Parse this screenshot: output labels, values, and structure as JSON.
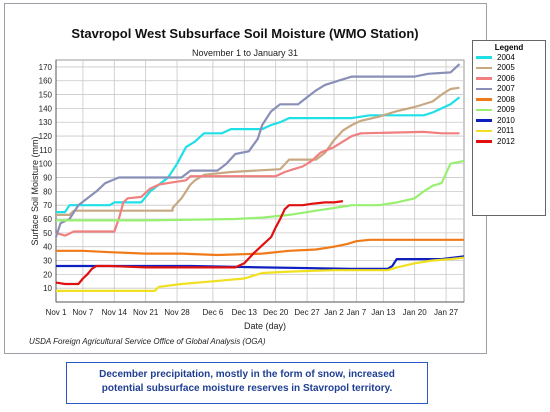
{
  "chart_data": {
    "type": "line",
    "title": "Stavropol West Subsurface Soil Moisture (WMO Station)",
    "subtitle": "November 1 to January 31",
    "xlabel": "Date (day)",
    "ylabel": "Surface Soil Moisture (mm)",
    "ylim": [
      0,
      175
    ],
    "xlim": [
      0,
      91
    ],
    "yticks": [
      10,
      20,
      30,
      40,
      50,
      60,
      70,
      80,
      90,
      100,
      110,
      120,
      130,
      140,
      150,
      160,
      170
    ],
    "xticks": [
      {
        "day": 0,
        "label": "Nov 1"
      },
      {
        "day": 6,
        "label": "Nov 7"
      },
      {
        "day": 13,
        "label": "Nov 14"
      },
      {
        "day": 20,
        "label": "Nov 21"
      },
      {
        "day": 27,
        "label": "Nov 28"
      },
      {
        "day": 35,
        "label": "Dec 6"
      },
      {
        "day": 42,
        "label": "Dec 13"
      },
      {
        "day": 49,
        "label": "Dec 20"
      },
      {
        "day": 56,
        "label": "Dec 27"
      },
      {
        "day": 62,
        "label": "Jan 2"
      },
      {
        "day": 67,
        "label": "Jan 7"
      },
      {
        "day": 73,
        "label": "Jan 13"
      },
      {
        "day": 80,
        "label": "Jan 20"
      },
      {
        "day": 87,
        "label": "Jan 27"
      }
    ],
    "grid": true,
    "legend_title": "Legend",
    "legend_position": "right",
    "series": [
      {
        "name": "2004",
        "color": "#1ee0e6",
        "points": [
          [
            0,
            65
          ],
          [
            2,
            65
          ],
          [
            3,
            70
          ],
          [
            12,
            70
          ],
          [
            13,
            72
          ],
          [
            19,
            72
          ],
          [
            21,
            80
          ],
          [
            23,
            85
          ],
          [
            25,
            90
          ],
          [
            27,
            100
          ],
          [
            29,
            112
          ],
          [
            31,
            116
          ],
          [
            33,
            122
          ],
          [
            37,
            122
          ],
          [
            39,
            125
          ],
          [
            46,
            125
          ],
          [
            48,
            128
          ],
          [
            50,
            130
          ],
          [
            52,
            133
          ],
          [
            66,
            133
          ],
          [
            70,
            135
          ],
          [
            82,
            135
          ],
          [
            84,
            137
          ],
          [
            86,
            140
          ],
          [
            88,
            143
          ],
          [
            90,
            148
          ]
        ]
      },
      {
        "name": "2005",
        "color": "#c8a882",
        "points": [
          [
            0,
            63
          ],
          [
            3,
            63
          ],
          [
            4,
            66
          ],
          [
            26,
            66
          ],
          [
            26,
            68
          ],
          [
            28,
            75
          ],
          [
            30,
            85
          ],
          [
            31,
            88
          ],
          [
            33,
            92
          ],
          [
            39,
            94
          ],
          [
            50,
            96
          ],
          [
            52,
            103
          ],
          [
            58,
            103
          ],
          [
            60,
            108
          ],
          [
            62,
            117
          ],
          [
            64,
            124
          ],
          [
            66,
            128
          ],
          [
            68,
            131
          ],
          [
            72,
            134
          ],
          [
            76,
            138
          ],
          [
            80,
            141
          ],
          [
            84,
            145
          ],
          [
            86,
            150
          ],
          [
            88,
            154
          ],
          [
            90,
            155
          ]
        ]
      },
      {
        "name": "2006",
        "color": "#f08080",
        "points": [
          [
            0,
            50
          ],
          [
            2,
            48
          ],
          [
            4,
            51
          ],
          [
            13,
            51
          ],
          [
            14,
            60
          ],
          [
            15,
            72
          ],
          [
            16,
            75
          ],
          [
            19,
            76
          ],
          [
            21,
            82
          ],
          [
            23,
            85
          ],
          [
            25,
            86
          ],
          [
            29,
            88
          ],
          [
            30,
            91
          ],
          [
            49,
            91
          ],
          [
            51,
            94
          ],
          [
            53,
            96
          ],
          [
            55,
            98
          ],
          [
            57,
            102
          ],
          [
            59,
            108
          ],
          [
            62,
            112
          ],
          [
            64,
            116
          ],
          [
            66,
            120
          ],
          [
            68,
            122
          ],
          [
            82,
            123
          ],
          [
            86,
            122
          ],
          [
            90,
            122
          ]
        ]
      },
      {
        "name": "2007",
        "color": "#8a8fb8",
        "points": [
          [
            0,
            47
          ],
          [
            1,
            57
          ],
          [
            3,
            60
          ],
          [
            5,
            70
          ],
          [
            7,
            75
          ],
          [
            9,
            80
          ],
          [
            11,
            86
          ],
          [
            14,
            90
          ],
          [
            28,
            90
          ],
          [
            30,
            95
          ],
          [
            36,
            95
          ],
          [
            38,
            100
          ],
          [
            40,
            107
          ],
          [
            43,
            109
          ],
          [
            45,
            118
          ],
          [
            46,
            128
          ],
          [
            48,
            138
          ],
          [
            50,
            143
          ],
          [
            54,
            143
          ],
          [
            56,
            148
          ],
          [
            58,
            153
          ],
          [
            60,
            157
          ],
          [
            63,
            160
          ],
          [
            66,
            163
          ],
          [
            80,
            163
          ],
          [
            83,
            165
          ],
          [
            88,
            166
          ],
          [
            90,
            172
          ]
        ]
      },
      {
        "name": "2008",
        "color": "#f07a18",
        "points": [
          [
            0,
            37
          ],
          [
            6,
            37
          ],
          [
            12,
            36
          ],
          [
            20,
            35
          ],
          [
            28,
            35
          ],
          [
            36,
            34
          ],
          [
            46,
            35
          ],
          [
            52,
            37
          ],
          [
            58,
            38
          ],
          [
            62,
            40
          ],
          [
            65,
            42
          ],
          [
            67,
            44
          ],
          [
            70,
            45
          ],
          [
            91,
            45
          ]
        ]
      },
      {
        "name": "2009",
        "color": "#98f070",
        "points": [
          [
            0,
            59
          ],
          [
            20,
            59
          ],
          [
            40,
            60
          ],
          [
            46,
            61
          ],
          [
            52,
            63
          ],
          [
            58,
            66
          ],
          [
            62,
            68
          ],
          [
            66,
            70
          ],
          [
            72,
            70
          ],
          [
            76,
            72
          ],
          [
            80,
            75
          ],
          [
            82,
            80
          ],
          [
            84,
            84
          ],
          [
            86,
            86
          ],
          [
            88,
            100
          ],
          [
            91,
            102
          ]
        ]
      },
      {
        "name": "2010",
        "color": "#1020c0",
        "points": [
          [
            0,
            26
          ],
          [
            30,
            26
          ],
          [
            46,
            25
          ],
          [
            66,
            24
          ],
          [
            74,
            24
          ],
          [
            75,
            26
          ],
          [
            76,
            31
          ],
          [
            86,
            31
          ],
          [
            91,
            33
          ]
        ]
      },
      {
        "name": "2011",
        "color": "#f0e020",
        "points": [
          [
            0,
            8
          ],
          [
            22,
            8
          ],
          [
            23,
            11
          ],
          [
            28,
            13
          ],
          [
            35,
            15
          ],
          [
            42,
            17
          ],
          [
            46,
            21
          ],
          [
            52,
            22
          ],
          [
            62,
            23
          ],
          [
            74,
            23
          ],
          [
            76,
            25
          ],
          [
            80,
            28
          ],
          [
            84,
            30
          ],
          [
            88,
            31
          ],
          [
            91,
            32
          ]
        ]
      },
      {
        "name": "2012",
        "color": "#e01010",
        "points": [
          [
            0,
            14
          ],
          [
            2,
            13
          ],
          [
            5,
            13
          ],
          [
            6,
            17
          ],
          [
            7,
            20
          ],
          [
            8,
            24
          ],
          [
            9,
            26
          ],
          [
            12,
            26
          ],
          [
            20,
            25
          ],
          [
            40,
            25
          ],
          [
            42,
            28
          ],
          [
            44,
            35
          ],
          [
            46,
            41
          ],
          [
            48,
            47
          ],
          [
            49,
            54
          ],
          [
            50,
            60
          ],
          [
            51,
            67
          ],
          [
            52,
            70
          ],
          [
            55,
            70
          ],
          [
            57,
            71
          ],
          [
            60,
            72
          ],
          [
            62,
            72
          ],
          [
            64,
            73
          ]
        ]
      }
    ]
  },
  "source": "USDA Foreign Agricultural Service Office of Global Analysis (OGA)",
  "caption": [
    "December precipitation, mostly in the form of snow, increased",
    "potential subsurface moisture reserves in Stavropol territory."
  ]
}
